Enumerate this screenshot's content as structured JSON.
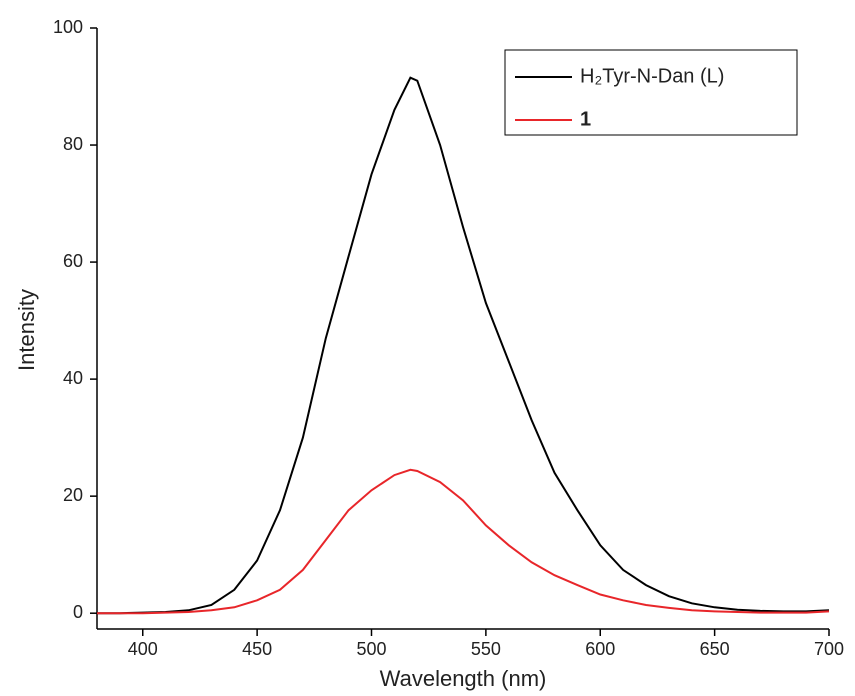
{
  "chart_data": {
    "type": "line",
    "x_label": "Wavelength (nm)",
    "y_label": "Intensity",
    "x": [
      380,
      390,
      400,
      410,
      420,
      430,
      440,
      450,
      460,
      470,
      480,
      490,
      500,
      510,
      517,
      520,
      530,
      540,
      550,
      560,
      570,
      580,
      590,
      600,
      610,
      620,
      630,
      640,
      650,
      660,
      670,
      680,
      690,
      700
    ],
    "series": [
      {
        "name": "H₂Tyr-N-Dan (L)",
        "color": "#000000",
        "values": [
          0,
          0,
          0.1,
          0.2,
          0.5,
          1.4,
          4,
          9,
          17.6,
          30,
          47,
          61,
          75,
          86,
          91.5,
          91,
          80,
          66,
          53,
          43,
          33,
          24,
          17.6,
          11.6,
          7.4,
          4.8,
          2.9,
          1.7,
          1,
          0.6,
          0.4,
          0.3,
          0.3,
          0.5
        ]
      },
      {
        "name": "1",
        "color": "#e8262a",
        "values": [
          0,
          0,
          0,
          0.1,
          0.2,
          0.5,
          1,
          2.2,
          4,
          7.4,
          12.5,
          17.6,
          21,
          23.6,
          24.5,
          24.3,
          22.4,
          19.3,
          15,
          11.6,
          8.7,
          6.5,
          4.8,
          3.2,
          2.2,
          1.4,
          0.9,
          0.5,
          0.3,
          0.2,
          0.1,
          0.1,
          0.1,
          0.3
        ]
      }
    ],
    "xlim": [
      380,
      700
    ],
    "xticks": [
      400,
      450,
      500,
      550,
      600,
      650,
      700
    ],
    "ylim": [
      -2.7,
      100
    ],
    "yticks": [
      0,
      20,
      40,
      60,
      80,
      100
    ],
    "legend": "upper right"
  }
}
